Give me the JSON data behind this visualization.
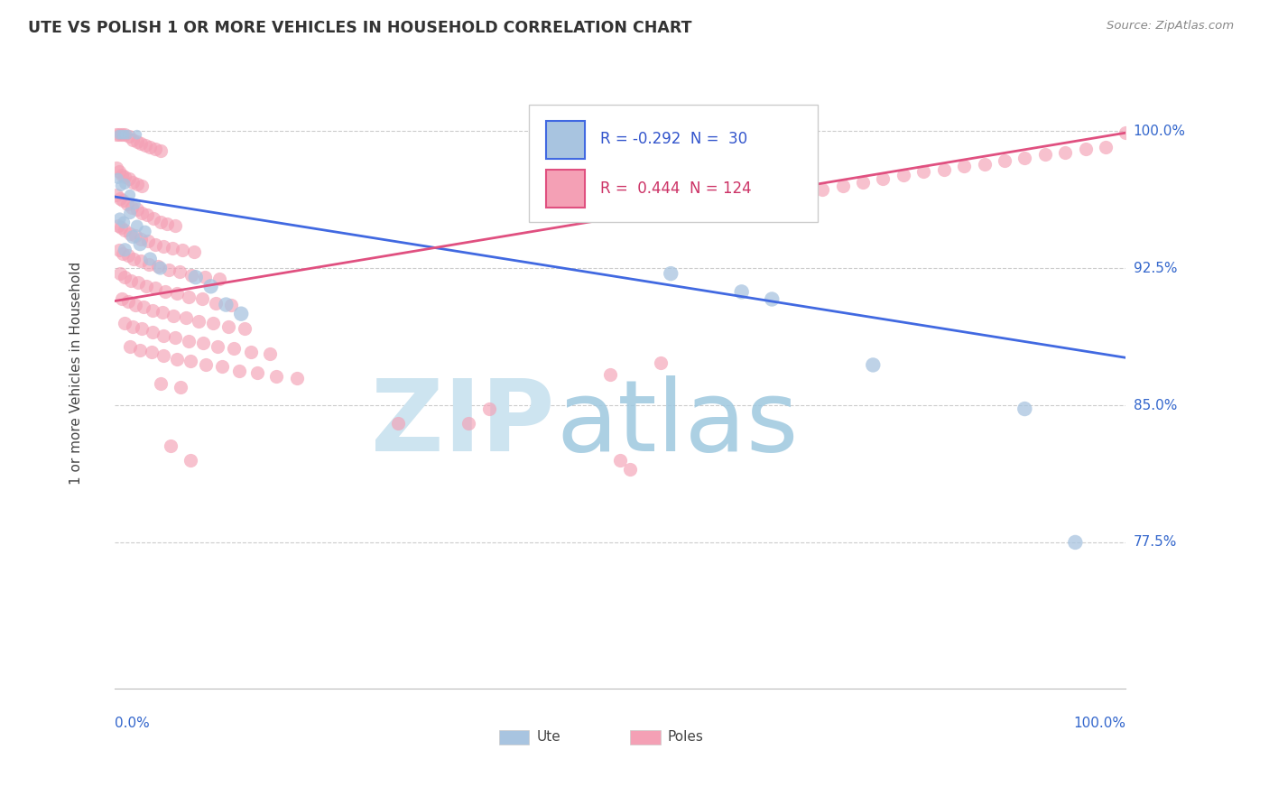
{
  "title": "UTE VS POLISH 1 OR MORE VEHICLES IN HOUSEHOLD CORRELATION CHART",
  "source": "Source: ZipAtlas.com",
  "ylabel": "1 or more Vehicles in Household",
  "ytick_labels": [
    "77.5%",
    "85.0%",
    "92.5%",
    "100.0%"
  ],
  "ytick_values": [
    0.775,
    0.85,
    0.925,
    1.0
  ],
  "xlim": [
    0.0,
    1.0
  ],
  "ylim": [
    0.695,
    1.04
  ],
  "ute_R": -0.292,
  "ute_N": 30,
  "poles_R": 0.444,
  "poles_N": 124,
  "ute_color": "#a8c4e0",
  "poles_color": "#f4a0b5",
  "ute_line_color": "#4169e1",
  "poles_line_color": "#e05080",
  "ute_line": [
    0.0,
    0.964,
    1.0,
    0.876
  ],
  "poles_line": [
    0.0,
    0.907,
    1.0,
    0.999
  ],
  "ute_points": [
    [
      0.004,
      0.998
    ],
    [
      0.007,
      0.998
    ],
    [
      0.01,
      0.998
    ],
    [
      0.013,
      0.998
    ],
    [
      0.022,
      0.998
    ],
    [
      0.003,
      0.974
    ],
    [
      0.006,
      0.97
    ],
    [
      0.01,
      0.971
    ],
    [
      0.015,
      0.965
    ],
    [
      0.02,
      0.96
    ],
    [
      0.005,
      0.952
    ],
    [
      0.009,
      0.95
    ],
    [
      0.015,
      0.955
    ],
    [
      0.022,
      0.948
    ],
    [
      0.03,
      0.945
    ],
    [
      0.01,
      0.935
    ],
    [
      0.018,
      0.942
    ],
    [
      0.025,
      0.938
    ],
    [
      0.035,
      0.93
    ],
    [
      0.045,
      0.925
    ],
    [
      0.08,
      0.92
    ],
    [
      0.095,
      0.915
    ],
    [
      0.11,
      0.905
    ],
    [
      0.125,
      0.9
    ],
    [
      0.55,
      0.922
    ],
    [
      0.62,
      0.912
    ],
    [
      0.65,
      0.908
    ],
    [
      0.75,
      0.872
    ],
    [
      0.9,
      0.848
    ],
    [
      0.95,
      0.775
    ]
  ],
  "ute_sizes": [
    60,
    60,
    60,
    60,
    60,
    80,
    80,
    80,
    80,
    80,
    100,
    100,
    100,
    100,
    100,
    120,
    120,
    120,
    120,
    120,
    140,
    140,
    140,
    140,
    140,
    140,
    140,
    140,
    140,
    140
  ],
  "poles_points": [
    [
      0.002,
      0.998
    ],
    [
      0.004,
      0.998
    ],
    [
      0.007,
      0.998
    ],
    [
      0.01,
      0.998
    ],
    [
      0.014,
      0.997
    ],
    [
      0.018,
      0.995
    ],
    [
      0.022,
      0.994
    ],
    [
      0.026,
      0.993
    ],
    [
      0.03,
      0.992
    ],
    [
      0.035,
      0.991
    ],
    [
      0.04,
      0.99
    ],
    [
      0.045,
      0.989
    ],
    [
      0.002,
      0.98
    ],
    [
      0.004,
      0.978
    ],
    [
      0.007,
      0.976
    ],
    [
      0.01,
      0.975
    ],
    [
      0.014,
      0.974
    ],
    [
      0.018,
      0.972
    ],
    [
      0.022,
      0.971
    ],
    [
      0.027,
      0.97
    ],
    [
      0.002,
      0.965
    ],
    [
      0.005,
      0.963
    ],
    [
      0.008,
      0.962
    ],
    [
      0.012,
      0.96
    ],
    [
      0.017,
      0.958
    ],
    [
      0.022,
      0.957
    ],
    [
      0.027,
      0.955
    ],
    [
      0.032,
      0.954
    ],
    [
      0.038,
      0.952
    ],
    [
      0.045,
      0.95
    ],
    [
      0.052,
      0.949
    ],
    [
      0.06,
      0.948
    ],
    [
      0.003,
      0.948
    ],
    [
      0.006,
      0.947
    ],
    [
      0.01,
      0.946
    ],
    [
      0.015,
      0.944
    ],
    [
      0.02,
      0.943
    ],
    [
      0.026,
      0.941
    ],
    [
      0.033,
      0.94
    ],
    [
      0.04,
      0.938
    ],
    [
      0.048,
      0.937
    ],
    [
      0.057,
      0.936
    ],
    [
      0.067,
      0.935
    ],
    [
      0.078,
      0.934
    ],
    [
      0.004,
      0.935
    ],
    [
      0.008,
      0.933
    ],
    [
      0.013,
      0.932
    ],
    [
      0.019,
      0.93
    ],
    [
      0.026,
      0.929
    ],
    [
      0.034,
      0.927
    ],
    [
      0.043,
      0.926
    ],
    [
      0.053,
      0.924
    ],
    [
      0.064,
      0.923
    ],
    [
      0.076,
      0.921
    ],
    [
      0.089,
      0.92
    ],
    [
      0.103,
      0.919
    ],
    [
      0.005,
      0.922
    ],
    [
      0.01,
      0.92
    ],
    [
      0.016,
      0.918
    ],
    [
      0.023,
      0.917
    ],
    [
      0.031,
      0.915
    ],
    [
      0.04,
      0.914
    ],
    [
      0.05,
      0.912
    ],
    [
      0.061,
      0.911
    ],
    [
      0.073,
      0.909
    ],
    [
      0.086,
      0.908
    ],
    [
      0.1,
      0.906
    ],
    [
      0.115,
      0.905
    ],
    [
      0.007,
      0.908
    ],
    [
      0.013,
      0.907
    ],
    [
      0.02,
      0.905
    ],
    [
      0.028,
      0.904
    ],
    [
      0.037,
      0.902
    ],
    [
      0.047,
      0.901
    ],
    [
      0.058,
      0.899
    ],
    [
      0.07,
      0.898
    ],
    [
      0.083,
      0.896
    ],
    [
      0.097,
      0.895
    ],
    [
      0.112,
      0.893
    ],
    [
      0.128,
      0.892
    ],
    [
      0.01,
      0.895
    ],
    [
      0.018,
      0.893
    ],
    [
      0.027,
      0.892
    ],
    [
      0.037,
      0.89
    ],
    [
      0.048,
      0.888
    ],
    [
      0.06,
      0.887
    ],
    [
      0.073,
      0.885
    ],
    [
      0.087,
      0.884
    ],
    [
      0.102,
      0.882
    ],
    [
      0.118,
      0.881
    ],
    [
      0.135,
      0.879
    ],
    [
      0.153,
      0.878
    ],
    [
      0.015,
      0.882
    ],
    [
      0.025,
      0.88
    ],
    [
      0.036,
      0.879
    ],
    [
      0.048,
      0.877
    ],
    [
      0.061,
      0.875
    ],
    [
      0.075,
      0.874
    ],
    [
      0.09,
      0.872
    ],
    [
      0.106,
      0.871
    ],
    [
      0.123,
      0.869
    ],
    [
      0.141,
      0.868
    ],
    [
      0.16,
      0.866
    ],
    [
      0.18,
      0.865
    ],
    [
      0.045,
      0.862
    ],
    [
      0.065,
      0.86
    ],
    [
      0.35,
      0.84
    ],
    [
      0.37,
      0.848
    ],
    [
      0.49,
      0.867
    ],
    [
      0.5,
      0.82
    ],
    [
      0.51,
      0.815
    ],
    [
      0.54,
      0.873
    ],
    [
      0.6,
      0.955
    ],
    [
      0.62,
      0.958
    ],
    [
      0.64,
      0.96
    ],
    [
      0.66,
      0.963
    ],
    [
      0.68,
      0.965
    ],
    [
      0.7,
      0.968
    ],
    [
      0.72,
      0.97
    ],
    [
      0.74,
      0.972
    ],
    [
      0.76,
      0.974
    ],
    [
      0.78,
      0.976
    ],
    [
      0.8,
      0.978
    ],
    [
      0.82,
      0.979
    ],
    [
      0.84,
      0.981
    ],
    [
      0.86,
      0.982
    ],
    [
      0.88,
      0.984
    ],
    [
      0.9,
      0.985
    ],
    [
      0.92,
      0.987
    ],
    [
      0.94,
      0.988
    ],
    [
      0.96,
      0.99
    ],
    [
      0.98,
      0.991
    ],
    [
      1.0,
      0.999
    ],
    [
      0.055,
      0.828
    ],
    [
      0.075,
      0.82
    ],
    [
      0.28,
      0.84
    ]
  ],
  "poles_size": 120
}
